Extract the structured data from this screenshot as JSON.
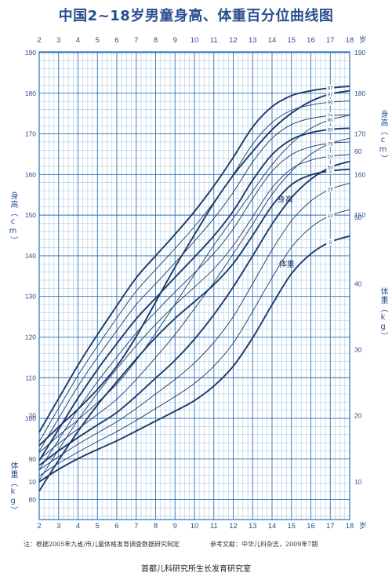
{
  "title": "中国2~18岁男童身高、体重百分位曲线图",
  "labels": {
    "age_unit": "岁",
    "height_axis": "身高（cm）",
    "weight_axis": "体重（kg）",
    "height_curve_label": "身高",
    "weight_curve_label": "体重"
  },
  "footer": {
    "note": "注：根据2005年九省/市儿童体格发育调查数据研究制定",
    "reference": "参考文献：中华儿科杂志，2009年7期",
    "org": "首都儿科研究所生长发育研究室"
  },
  "colors": {
    "grid": "#7fb3d9",
    "major_grid": "#2f6fb5",
    "curve": "#1a3a6b",
    "text": "#2a4f8f",
    "background": "#ffffff"
  },
  "chart_data": {
    "type": "line",
    "x_ticks": [
      2,
      3,
      4,
      5,
      6,
      7,
      8,
      9,
      10,
      11,
      12,
      13,
      14,
      15,
      16,
      17,
      18
    ],
    "xlim": [
      2,
      18
    ],
    "height_axis": {
      "ylim": [
        75,
        190
      ],
      "ticks": [
        80,
        90,
        100,
        110,
        120,
        130,
        140,
        150,
        160,
        170,
        180,
        190
      ],
      "right_ticks": [
        150,
        160,
        170,
        180,
        190
      ]
    },
    "weight_axis": {
      "ylim": [
        5,
        65
      ],
      "ticks": [
        10,
        20,
        30,
        40,
        50,
        60
      ],
      "left_ticks": [
        10,
        20
      ]
    },
    "height": {
      "x": [
        2,
        3,
        4,
        5,
        6,
        7,
        8,
        9,
        10,
        11,
        12,
        13,
        14,
        15,
        16,
        17,
        18
      ],
      "series": [
        {
          "name": "3",
          "values": [
            82.1,
            89.7,
            96.8,
            103.3,
            109.0,
            114.6,
            119.9,
            124.6,
            128.7,
            132.9,
            138.1,
            145.0,
            152.3,
            157.5,
            159.9,
            160.9,
            161.3
          ]
        },
        {
          "name": "10",
          "values": [
            84.8,
            92.3,
            99.6,
            106.2,
            112.2,
            117.9,
            123.1,
            127.9,
            132.3,
            136.8,
            142.5,
            149.6,
            156.7,
            161.4,
            163.5,
            164.5,
            164.9
          ]
        },
        {
          "name": "25",
          "values": [
            87.3,
            94.7,
            102.2,
            109.0,
            115.1,
            121.0,
            126.2,
            131.1,
            135.8,
            140.6,
            146.6,
            154.1,
            160.8,
            164.9,
            166.8,
            167.7,
            168.0
          ]
        },
        {
          "name": "50",
          "values": [
            89.6,
            97.3,
            105.0,
            112.0,
            118.4,
            124.5,
            129.6,
            134.7,
            139.7,
            144.9,
            151.0,
            158.6,
            164.9,
            168.6,
            170.3,
            171.1,
            171.4
          ]
        },
        {
          "name": "75",
          "values": [
            91.9,
            100.0,
            107.9,
            115.0,
            121.6,
            128.0,
            133.1,
            138.3,
            143.6,
            149.2,
            155.6,
            163.1,
            168.9,
            172.3,
            173.8,
            174.5,
            174.7
          ]
        },
        {
          "name": "90",
          "values": [
            94.3,
            102.5,
            110.6,
            117.8,
            124.7,
            131.3,
            136.6,
            141.8,
            147.2,
            153.2,
            160.0,
            167.5,
            172.8,
            175.8,
            177.1,
            177.8,
            178.1
          ]
        },
        {
          "name": "97",
          "values": [
            96.6,
            104.9,
            113.1,
            120.6,
            127.7,
            134.6,
            140.0,
            145.3,
            150.9,
            157.2,
            164.2,
            171.7,
            176.7,
            179.4,
            180.6,
            181.3,
            181.7
          ]
        }
      ]
    },
    "weight": {
      "x": [
        2,
        3,
        4,
        5,
        6,
        7,
        8,
        9,
        10,
        11,
        12,
        13,
        14,
        15,
        16,
        17,
        18
      ],
      "series": [
        {
          "name": "3",
          "values": [
            10.0,
            11.9,
            13.5,
            14.9,
            16.2,
            17.7,
            19.2,
            20.7,
            22.3,
            24.5,
            27.5,
            31.8,
            36.8,
            41.5,
            44.5,
            46.3,
            47.2
          ]
        },
        {
          "name": "10",
          "values": [
            10.9,
            12.8,
            14.5,
            16.1,
            17.6,
            19.3,
            21.1,
            22.9,
            24.9,
            27.5,
            31.0,
            35.8,
            40.9,
            45.5,
            48.5,
            50.3,
            51.2
          ]
        },
        {
          "name": "25",
          "values": [
            11.8,
            13.8,
            15.7,
            17.4,
            19.1,
            21.1,
            23.3,
            25.5,
            28.0,
            31.1,
            35.0,
            40.0,
            45.1,
            49.5,
            52.5,
            54.3,
            55.2
          ]
        },
        {
          "name": "50",
          "values": [
            12.5,
            14.7,
            16.7,
            18.6,
            20.5,
            23.0,
            25.7,
            28.4,
            31.6,
            35.3,
            39.5,
            44.2,
            49.0,
            53.0,
            55.8,
            57.6,
            58.5
          ]
        },
        {
          "name": "75",
          "values": [
            13.4,
            15.8,
            18.0,
            20.2,
            22.5,
            25.5,
            28.8,
            32.3,
            36.2,
            40.2,
            44.5,
            49.0,
            53.5,
            57.0,
            59.6,
            61.2,
            62.0
          ]
        },
        {
          "name": "90",
          "values": [
            14.4,
            17.0,
            19.4,
            22.0,
            24.8,
            28.4,
            32.5,
            36.9,
            41.4,
            45.8,
            49.9,
            54.0,
            58.0,
            61.2,
            63.5,
            64.8,
            65.5
          ]
        },
        {
          "name": "97",
          "values": [
            15.5,
            18.3,
            21.0,
            24.0,
            27.5,
            32.0,
            37.2,
            42.5,
            47.4,
            52.2,
            56.4,
            60.0,
            63.3,
            65.8,
            67.6,
            68.7,
            69.2
          ]
        }
      ]
    }
  }
}
